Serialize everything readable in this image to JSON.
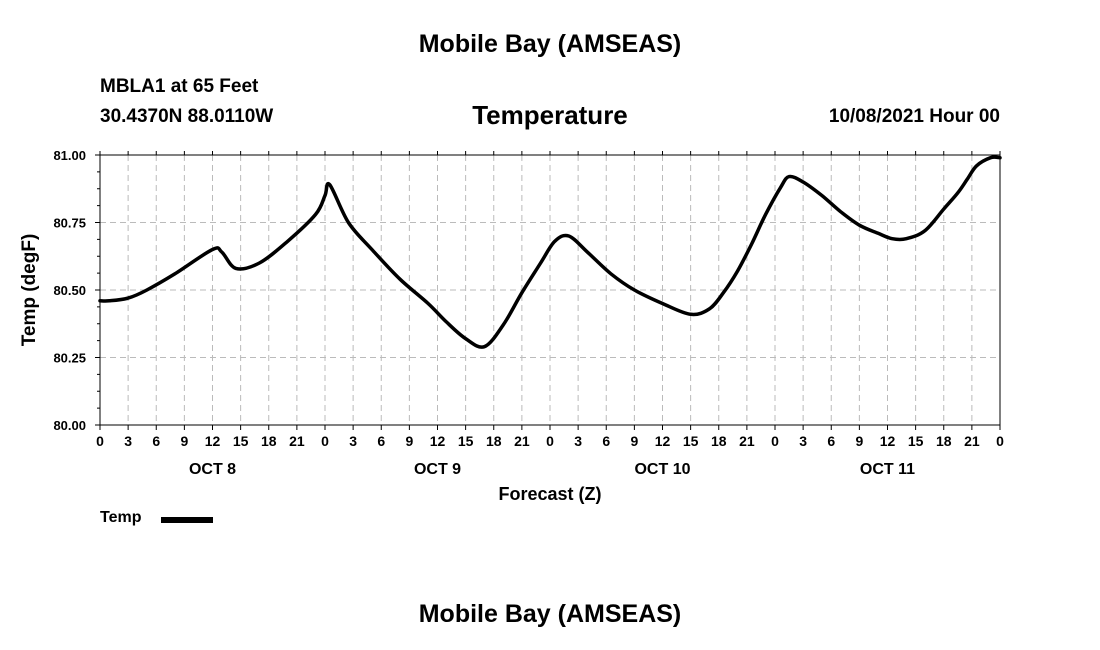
{
  "header": {
    "title": "Mobile Bay (AMSEAS)",
    "station": "MBLA1 at 65 Feet",
    "coords": "30.4370N  88.0110W",
    "variable": "Temperature",
    "datetime": "10/08/2021 Hour 00"
  },
  "footer": {
    "title": "Mobile Bay (AMSEAS)"
  },
  "legend": {
    "label": "Temp"
  },
  "chart_data": {
    "type": "line",
    "title": "Temperature",
    "xlabel": "Forecast (Z)",
    "ylabel": "Temp (degF)",
    "ylim": [
      80.0,
      81.0
    ],
    "yticks": [
      "80.00",
      "80.25",
      "80.50",
      "80.75",
      "81.00"
    ],
    "xlim_hours": [
      0,
      96
    ],
    "xtick_labels": [
      "0",
      "3",
      "6",
      "9",
      "12",
      "15",
      "18",
      "21",
      "0",
      "3",
      "6",
      "9",
      "12",
      "15",
      "18",
      "21",
      "0",
      "3",
      "6",
      "9",
      "12",
      "15",
      "18",
      "21",
      "0",
      "3",
      "6",
      "9",
      "12",
      "15",
      "18",
      "21",
      "0"
    ],
    "day_labels": [
      {
        "label": "OCT 8",
        "hour": 12
      },
      {
        "label": "OCT 9",
        "hour": 36
      },
      {
        "label": "OCT 10",
        "hour": 60
      },
      {
        "label": "OCT 11",
        "hour": 84
      }
    ],
    "grid": true,
    "legend_position": "bottom-left",
    "series": [
      {
        "name": "Temp",
        "color": "#000000",
        "x": [
          0,
          1,
          3,
          5,
          8,
          12,
          13,
          14.5,
          17,
          20,
          23,
          24,
          24.5,
          26.5,
          29,
          32,
          35,
          37,
          39,
          41,
          43,
          45,
          47,
          48.5,
          50,
          52,
          54.5,
          57,
          60,
          63,
          65,
          66.5,
          68,
          69.5,
          71,
          72.6,
          73.5,
          75,
          77,
          79,
          81,
          83,
          84.5,
          86,
          88,
          90,
          91.5,
          92.5,
          93.5,
          95,
          96
        ],
        "y": [
          80.46,
          80.46,
          80.47,
          80.5,
          80.56,
          80.65,
          80.64,
          80.58,
          80.6,
          80.68,
          80.78,
          80.85,
          80.89,
          80.75,
          80.65,
          80.54,
          80.45,
          80.38,
          80.32,
          80.29,
          80.37,
          80.49,
          80.6,
          80.68,
          80.7,
          80.64,
          80.56,
          80.5,
          80.45,
          80.41,
          80.43,
          80.49,
          80.57,
          80.67,
          80.78,
          80.88,
          80.92,
          80.9,
          80.85,
          80.79,
          80.74,
          80.71,
          80.69,
          80.69,
          80.72,
          80.8,
          80.86,
          80.91,
          80.96,
          80.99,
          80.99
        ]
      }
    ]
  }
}
